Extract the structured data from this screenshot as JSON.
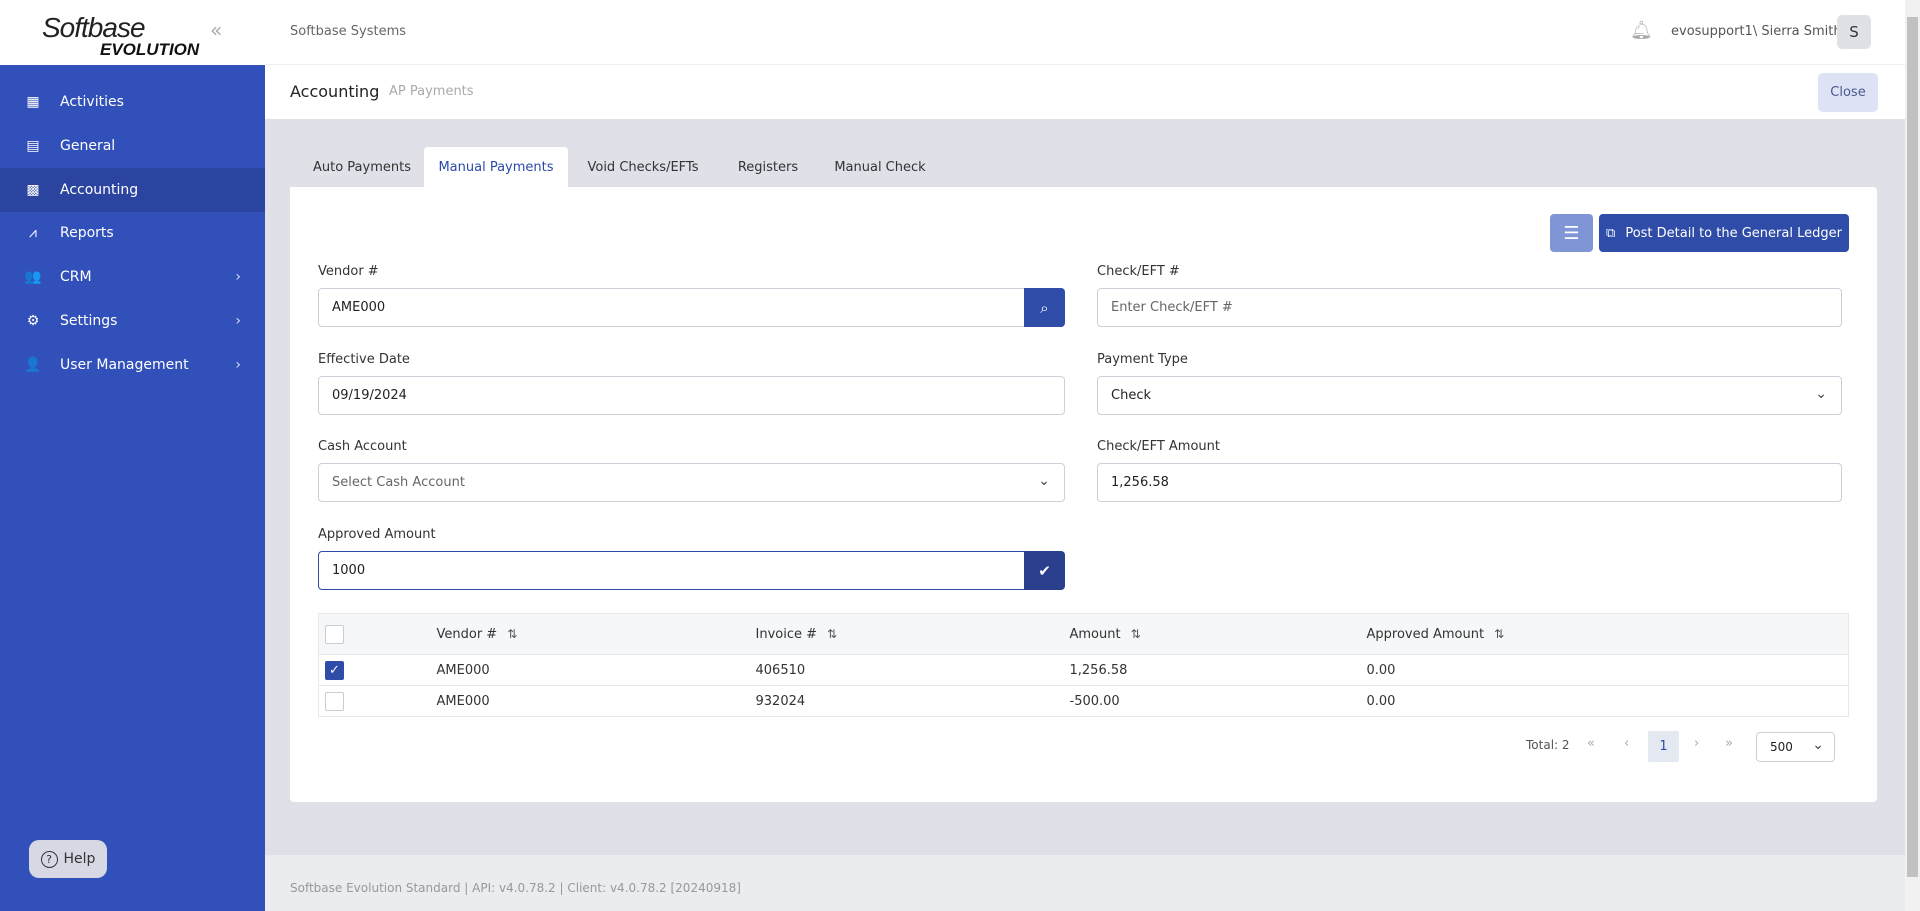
{
  "logo": {
    "line1": "Softbase",
    "line2": "EVOLUTION"
  },
  "sidebar": {
    "items": [
      {
        "label": "Activities",
        "icon": "grid-icon"
      },
      {
        "label": "General",
        "icon": "archive-icon"
      },
      {
        "label": "Accounting",
        "icon": "calculator-icon",
        "active": true
      },
      {
        "label": "Reports",
        "icon": "chart-icon"
      },
      {
        "label": "CRM",
        "icon": "users-icon",
        "has_children": true
      },
      {
        "label": "Settings",
        "icon": "gear-icon",
        "has_children": true
      },
      {
        "label": "User Management",
        "icon": "user-cog-icon",
        "has_children": true
      }
    ],
    "help_label": "Help"
  },
  "header": {
    "company": "Softbase Systems",
    "user": "evosupport1\\ Sierra Smith",
    "avatar": "S"
  },
  "breadcrumb": {
    "section": "Accounting",
    "page": "AP Payments",
    "close_label": "Close"
  },
  "tabs": [
    {
      "label": "Auto Payments"
    },
    {
      "label": "Manual Payments",
      "active": true
    },
    {
      "label": "Void Checks/EFTs"
    },
    {
      "label": "Registers"
    },
    {
      "label": "Manual Check"
    }
  ],
  "toolbar": {
    "post_label": "Post Detail to the General Ledger"
  },
  "form": {
    "vendor": {
      "label": "Vendor #",
      "value": "AME000"
    },
    "check": {
      "label": "Check/EFT #",
      "placeholder": "Enter Check/EFT #"
    },
    "effective_date": {
      "label": "Effective Date",
      "value": "09/19/2024"
    },
    "payment_type": {
      "label": "Payment Type",
      "value": "Check"
    },
    "cash_account": {
      "label": "Cash Account",
      "placeholder": "Select Cash Account"
    },
    "check_amount": {
      "label": "Check/EFT Amount",
      "value": "1,256.58"
    },
    "approved_amount": {
      "label": "Approved Amount",
      "value": "1000"
    }
  },
  "table": {
    "columns": [
      "Vendor #",
      "Invoice #",
      "Amount",
      "Approved Amount"
    ],
    "rows": [
      {
        "checked": true,
        "vendor": "AME000",
        "invoice": "406510",
        "amount": "1,256.58",
        "approved": "0.00"
      },
      {
        "checked": false,
        "vendor": "AME000",
        "invoice": "932024",
        "amount": "-500.00",
        "approved": "0.00"
      }
    ]
  },
  "pagination": {
    "total": "Total: 2",
    "page": "1",
    "page_size": "500"
  },
  "footer": {
    "text": "Softbase Evolution Standard | API: v4.0.78.2 | Client: v4.0.78.2 [20240918]"
  },
  "colors": {
    "sidebar": "#3250b9",
    "primary": "#2f4ca8"
  }
}
